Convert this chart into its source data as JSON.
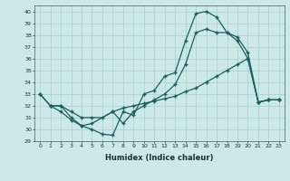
{
  "xlabel": "Humidex (Indice chaleur)",
  "ylabel": "",
  "xlim": [
    -0.5,
    23.5
  ],
  "ylim": [
    29,
    40.5
  ],
  "yticks": [
    29,
    30,
    31,
    32,
    33,
    34,
    35,
    36,
    37,
    38,
    39,
    40
  ],
  "xticks": [
    0,
    1,
    2,
    3,
    4,
    5,
    6,
    7,
    8,
    9,
    10,
    11,
    12,
    13,
    14,
    15,
    16,
    17,
    18,
    19,
    20,
    21,
    22,
    23
  ],
  "bg_color": "#cce8e8",
  "line_color": "#1a6060",
  "grid_color": "#aacece",
  "line1_x": [
    0,
    1,
    2,
    3,
    4,
    5,
    6,
    7,
    8,
    9,
    10,
    11,
    12,
    13,
    14,
    15,
    16,
    17,
    18,
    19,
    20,
    21,
    22,
    23
  ],
  "line1_y": [
    33,
    32,
    32,
    31,
    30.3,
    30.0,
    29.6,
    29.5,
    31.5,
    31.2,
    33.0,
    33.3,
    34.5,
    34.8,
    37.5,
    39.8,
    40.0,
    39.5,
    38.2,
    37.5,
    36.0,
    32.3,
    32.5,
    32.5
  ],
  "line2_x": [
    0,
    1,
    2,
    3,
    4,
    5,
    7,
    8,
    9,
    10,
    11,
    12,
    13,
    14,
    15,
    16,
    17,
    18,
    19,
    20,
    21,
    22,
    23
  ],
  "line2_y": [
    33,
    32,
    31.5,
    30.8,
    30.3,
    30.5,
    31.5,
    30.5,
    31.5,
    32.0,
    32.5,
    33.0,
    33.8,
    35.5,
    38.2,
    38.5,
    38.2,
    38.2,
    37.8,
    36.5,
    32.3,
    32.5,
    32.5
  ],
  "line3_x": [
    1,
    2,
    3,
    4,
    5,
    6,
    7,
    8,
    9,
    10,
    11,
    12,
    13,
    14,
    15,
    16,
    17,
    18,
    19,
    20,
    21,
    22,
    23
  ],
  "line3_y": [
    32.0,
    32.0,
    31.5,
    31.0,
    31.0,
    31.0,
    31.5,
    31.8,
    32.0,
    32.2,
    32.4,
    32.6,
    32.8,
    33.2,
    33.5,
    34.0,
    34.5,
    35.0,
    35.5,
    36.0,
    32.3,
    32.5,
    32.5
  ]
}
